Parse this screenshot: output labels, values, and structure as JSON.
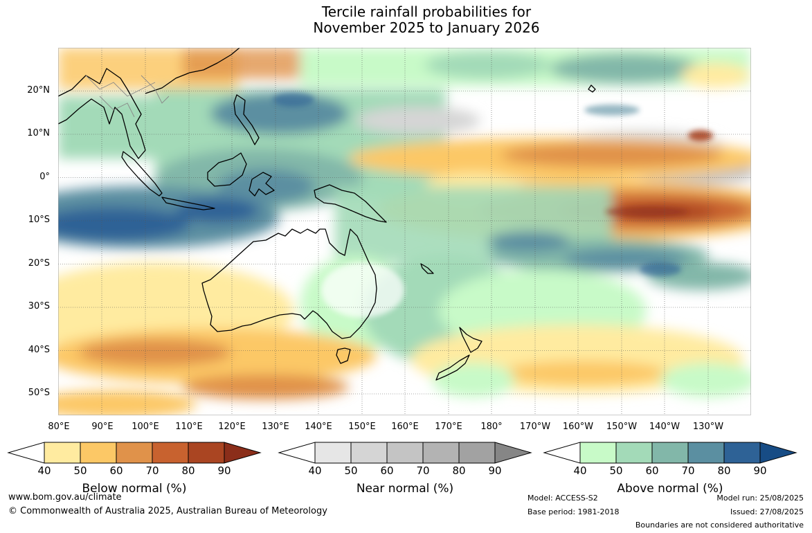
{
  "title": {
    "line1": "Tercile rainfall probabilities for",
    "line2": "November 2025 to January 2026"
  },
  "map": {
    "latitude_labels": [
      "20°N",
      "10°N",
      "0°",
      "10°S",
      "20°S",
      "30°S",
      "40°S",
      "50°S"
    ],
    "longitude_labels": [
      "80°E",
      "90°E",
      "100°E",
      "110°E",
      "120°E",
      "130°E",
      "140°E",
      "150°E",
      "160°E",
      "170°E",
      "180°",
      "170°W",
      "160°W",
      "150°W",
      "140°W",
      "130°W"
    ],
    "extent": {
      "lon_west": 80,
      "lon_east": 240,
      "lat_north": 30,
      "lat_south": -55
    },
    "grid": true,
    "boundaries": true
  },
  "legends": [
    {
      "title": "Below normal (%)",
      "ticks": [
        "40",
        "50",
        "60",
        "70",
        "80",
        "90"
      ],
      "colors": [
        "#ffffff",
        "#ffeba0",
        "#fcc866",
        "#e0924a",
        "#c8622f",
        "#aa4522",
        "#8b2e1a"
      ]
    },
    {
      "title": "Near normal (%)",
      "ticks": [
        "40",
        "50",
        "60",
        "70",
        "80",
        "90"
      ],
      "colors": [
        "#ffffff",
        "#e6e6e6",
        "#d5d5d5",
        "#c4c4c4",
        "#b3b3b3",
        "#a2a2a2",
        "#868686"
      ]
    },
    {
      "title": "Above normal (%)",
      "ticks": [
        "40",
        "50",
        "60",
        "70",
        "80",
        "90"
      ],
      "colors": [
        "#ffffff",
        "#c8fac8",
        "#a3dab8",
        "#82b7a9",
        "#5b8fa1",
        "#2e6296",
        "#174c85"
      ]
    }
  ],
  "footer": {
    "website": "www.bom.gov.au/climate",
    "copyright": "© Commonwealth of Australia 2025, Australian Bureau of Meteorology",
    "model": "Model: ACCESS-S2",
    "base_period": "Base period: 1981-2018",
    "model_run": "Model run: 25/08/2025",
    "issued": "Issued: 27/08/2025",
    "disclaimer": "Boundaries are not considered authoritative"
  }
}
